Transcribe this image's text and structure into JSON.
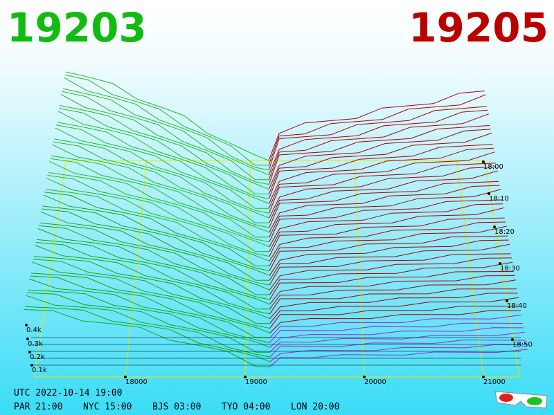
{
  "header": {
    "bid": "19203",
    "ask": "19205"
  },
  "price_ticks": [
    "18000",
    "19000",
    "20000",
    "21000"
  ],
  "time_ticks": [
    "18:00",
    "18:10",
    "18:20",
    "18:30",
    "18:40",
    "18:50"
  ],
  "depth_ticks": [
    "0.4k",
    "0.3k",
    "0.2k",
    "0.1k"
  ],
  "footer": {
    "utc": "UTC 2022-10-14 19:00",
    "clocks": [
      "PAR 21:00",
      "NYC 15:00",
      "BJS 03:00",
      "TYO 04:00",
      "LON 20:00"
    ]
  }
}
